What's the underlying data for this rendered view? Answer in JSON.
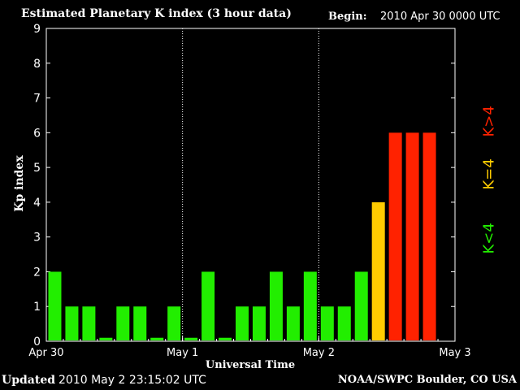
{
  "header": {
    "title": "Estimated Planetary K index (3 hour data)",
    "begin_label": "Begin:",
    "begin_value": "2010 Apr 30 0000 UTC"
  },
  "footer": {
    "updated_label": "Updated",
    "updated_value": "2010 May  2 23:15:02 UTC",
    "credit": "NOAA/SWPC Boulder, CO USA"
  },
  "legend": {
    "low": "K<4",
    "equal": "K=4",
    "high": "K>4",
    "colors": {
      "low": "#22ee00",
      "equal": "#ffcc00",
      "high": "#ff2200"
    }
  },
  "chart_data": {
    "type": "bar",
    "title": "Estimated Planetary K index (3 hour data)",
    "xlabel": "Universal Time",
    "ylabel": "Kp index",
    "ylim": [
      0,
      9
    ],
    "yticks": [
      "0",
      "1",
      "2",
      "3",
      "4",
      "5",
      "6",
      "7",
      "8",
      "9"
    ],
    "xticks": [
      "Apr 30",
      "May 1",
      "May 2",
      "May 3"
    ],
    "day_separators": [
      "May 1",
      "May 2"
    ],
    "slots_total": 24,
    "values": [
      2,
      1,
      1,
      0.1,
      1,
      1,
      0.1,
      1,
      0.1,
      2,
      0.1,
      1,
      1,
      2,
      1,
      2,
      1,
      1,
      2,
      4,
      6,
      6,
      6
    ],
    "colors": {
      "low": "#22ee00",
      "equal": "#ffcc00",
      "high": "#ff2200",
      "axis": "#ffffff",
      "grid": "#ffffff"
    }
  }
}
